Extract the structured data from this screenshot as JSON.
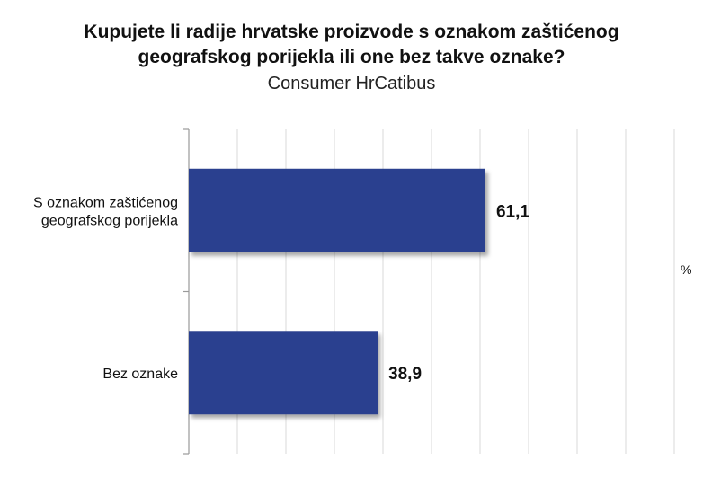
{
  "chart_data": {
    "type": "bar",
    "orientation": "horizontal",
    "title": "Kupujete li radije hrvatske proizvode s oznakom zaštićenog geografskog porijekla ili one bez takve oznake?",
    "subtitle": "Consumer HrCatibus",
    "categories": [
      [
        "S oznakom zaštićenog",
        "geografskog porijekla"
      ],
      [
        "Bez oznake"
      ]
    ],
    "values": [
      61.1,
      38.9
    ],
    "value_labels": [
      "61,1",
      "38,9"
    ],
    "unit": "%",
    "xlim": [
      0,
      100
    ],
    "grid": true,
    "bar_color": "#2b3f8f"
  }
}
